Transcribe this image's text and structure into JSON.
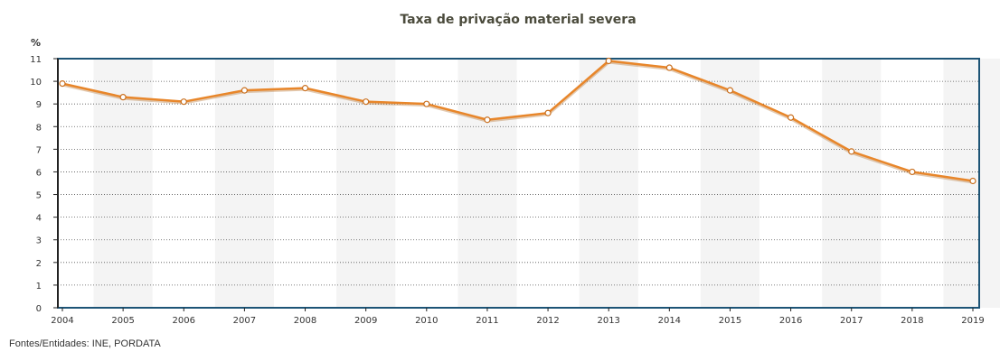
{
  "chart_data": {
    "type": "line",
    "title": "Taxa de privação material severa",
    "ylabel": "%",
    "xlabel": "",
    "ylim": [
      0,
      11
    ],
    "yticks": [
      "0",
      "1",
      "2",
      "3",
      "4",
      "5",
      "6",
      "7",
      "8",
      "9",
      "10",
      "11"
    ],
    "categories": [
      "2004",
      "2005",
      "2006",
      "2007",
      "2008",
      "2009",
      "2010",
      "2011",
      "2012",
      "2013",
      "2014",
      "2015",
      "2016",
      "2017",
      "2018",
      "2019"
    ],
    "series": [
      {
        "values": [
          9.9,
          9.3,
          9.1,
          9.6,
          9.7,
          9.1,
          9.0,
          8.3,
          8.6,
          10.9,
          10.6,
          9.6,
          8.4,
          6.9,
          6.0,
          5.6
        ]
      }
    ],
    "grid": "horizontal dotted",
    "colors": {
      "line": "#e8862a",
      "frame": "#1d5476",
      "band": "#f4f4f4"
    }
  },
  "source": "Fontes/Entidades: INE, PORDATA"
}
